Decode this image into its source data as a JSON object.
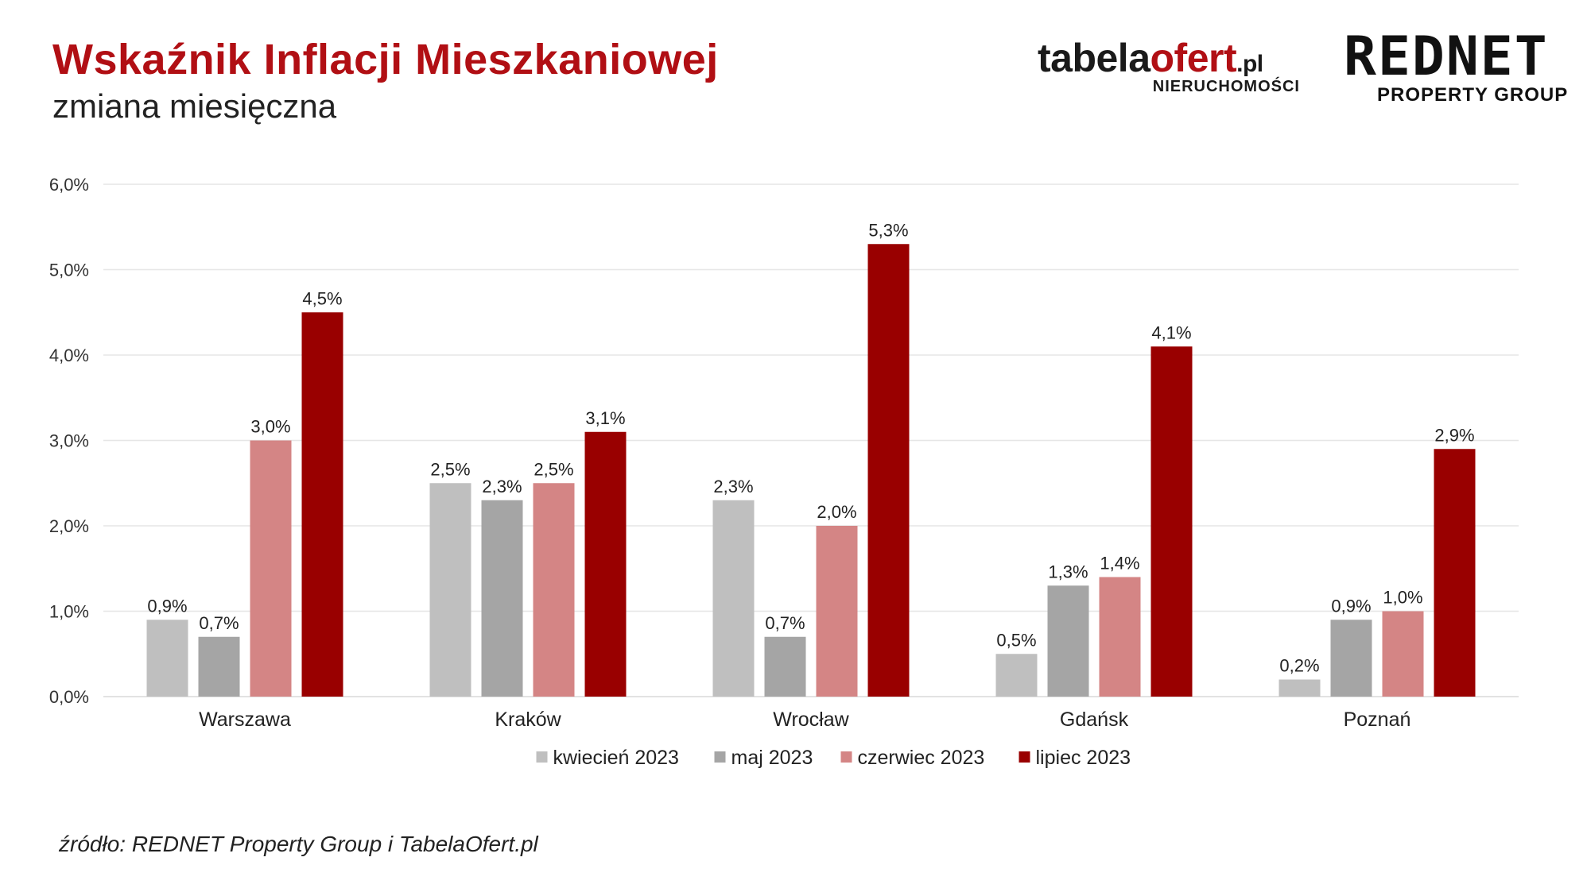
{
  "header": {
    "title": "Wskaźnik Inflacji Mieszkaniowej",
    "subtitle": "zmiana miesięczna"
  },
  "logos": {
    "tabela": {
      "brand_main": "tabela",
      "brand_accent": "ofert",
      "brand_tld": ".pl",
      "tag": "NIERUCHOMOŚCI"
    },
    "rednet": {
      "brand": "REDNET",
      "tag": "PROPERTY GROUP"
    }
  },
  "colors": {
    "kwiecien": "#bfbfbf",
    "maj": "#a5a5a5",
    "czerwiec": "#d48585",
    "lipiec": "#990000",
    "title": "#b10f14",
    "grid": "#e6e6e6"
  },
  "chart_data": {
    "type": "bar",
    "categories": [
      "Warszawa",
      "Kraków",
      "Wrocław",
      "Gdańsk",
      "Poznań"
    ],
    "series": [
      {
        "name": "kwiecień 2023",
        "color": "#bfbfbf",
        "values": [
          0.9,
          2.5,
          2.3,
          0.5,
          0.2
        ],
        "labels": [
          "0,9%",
          "2,5%",
          "2,3%",
          "0,5%",
          "0,2%"
        ]
      },
      {
        "name": "maj 2023",
        "color": "#a5a5a5",
        "values": [
          0.7,
          2.3,
          0.7,
          1.3,
          0.9
        ],
        "labels": [
          "0,7%",
          "2,3%",
          "0,7%",
          "1,3%",
          "0,9%"
        ]
      },
      {
        "name": "czerwiec 2023",
        "color": "#d48585",
        "values": [
          3.0,
          2.5,
          2.0,
          1.4,
          1.0
        ],
        "labels": [
          "3,0%",
          "2,5%",
          "2,0%",
          "1,4%",
          "1,0%"
        ]
      },
      {
        "name": "lipiec 2023",
        "color": "#990000",
        "values": [
          4.5,
          3.1,
          5.3,
          4.1,
          2.9
        ],
        "labels": [
          "4,5%",
          "3,1%",
          "5,3%",
          "4,1%",
          "2,9%"
        ]
      }
    ],
    "ylim": [
      0,
      6
    ],
    "yticks": [
      0,
      1,
      2,
      3,
      4,
      5,
      6
    ],
    "ytick_labels": [
      "0,0%",
      "1,0%",
      "2,0%",
      "3,0%",
      "4,0%",
      "5,0%",
      "6,0%"
    ],
    "grid": true,
    "legend_position": "bottom"
  },
  "footer": {
    "source": "źródło: REDNET Property Group i TabelaOfert.pl"
  }
}
